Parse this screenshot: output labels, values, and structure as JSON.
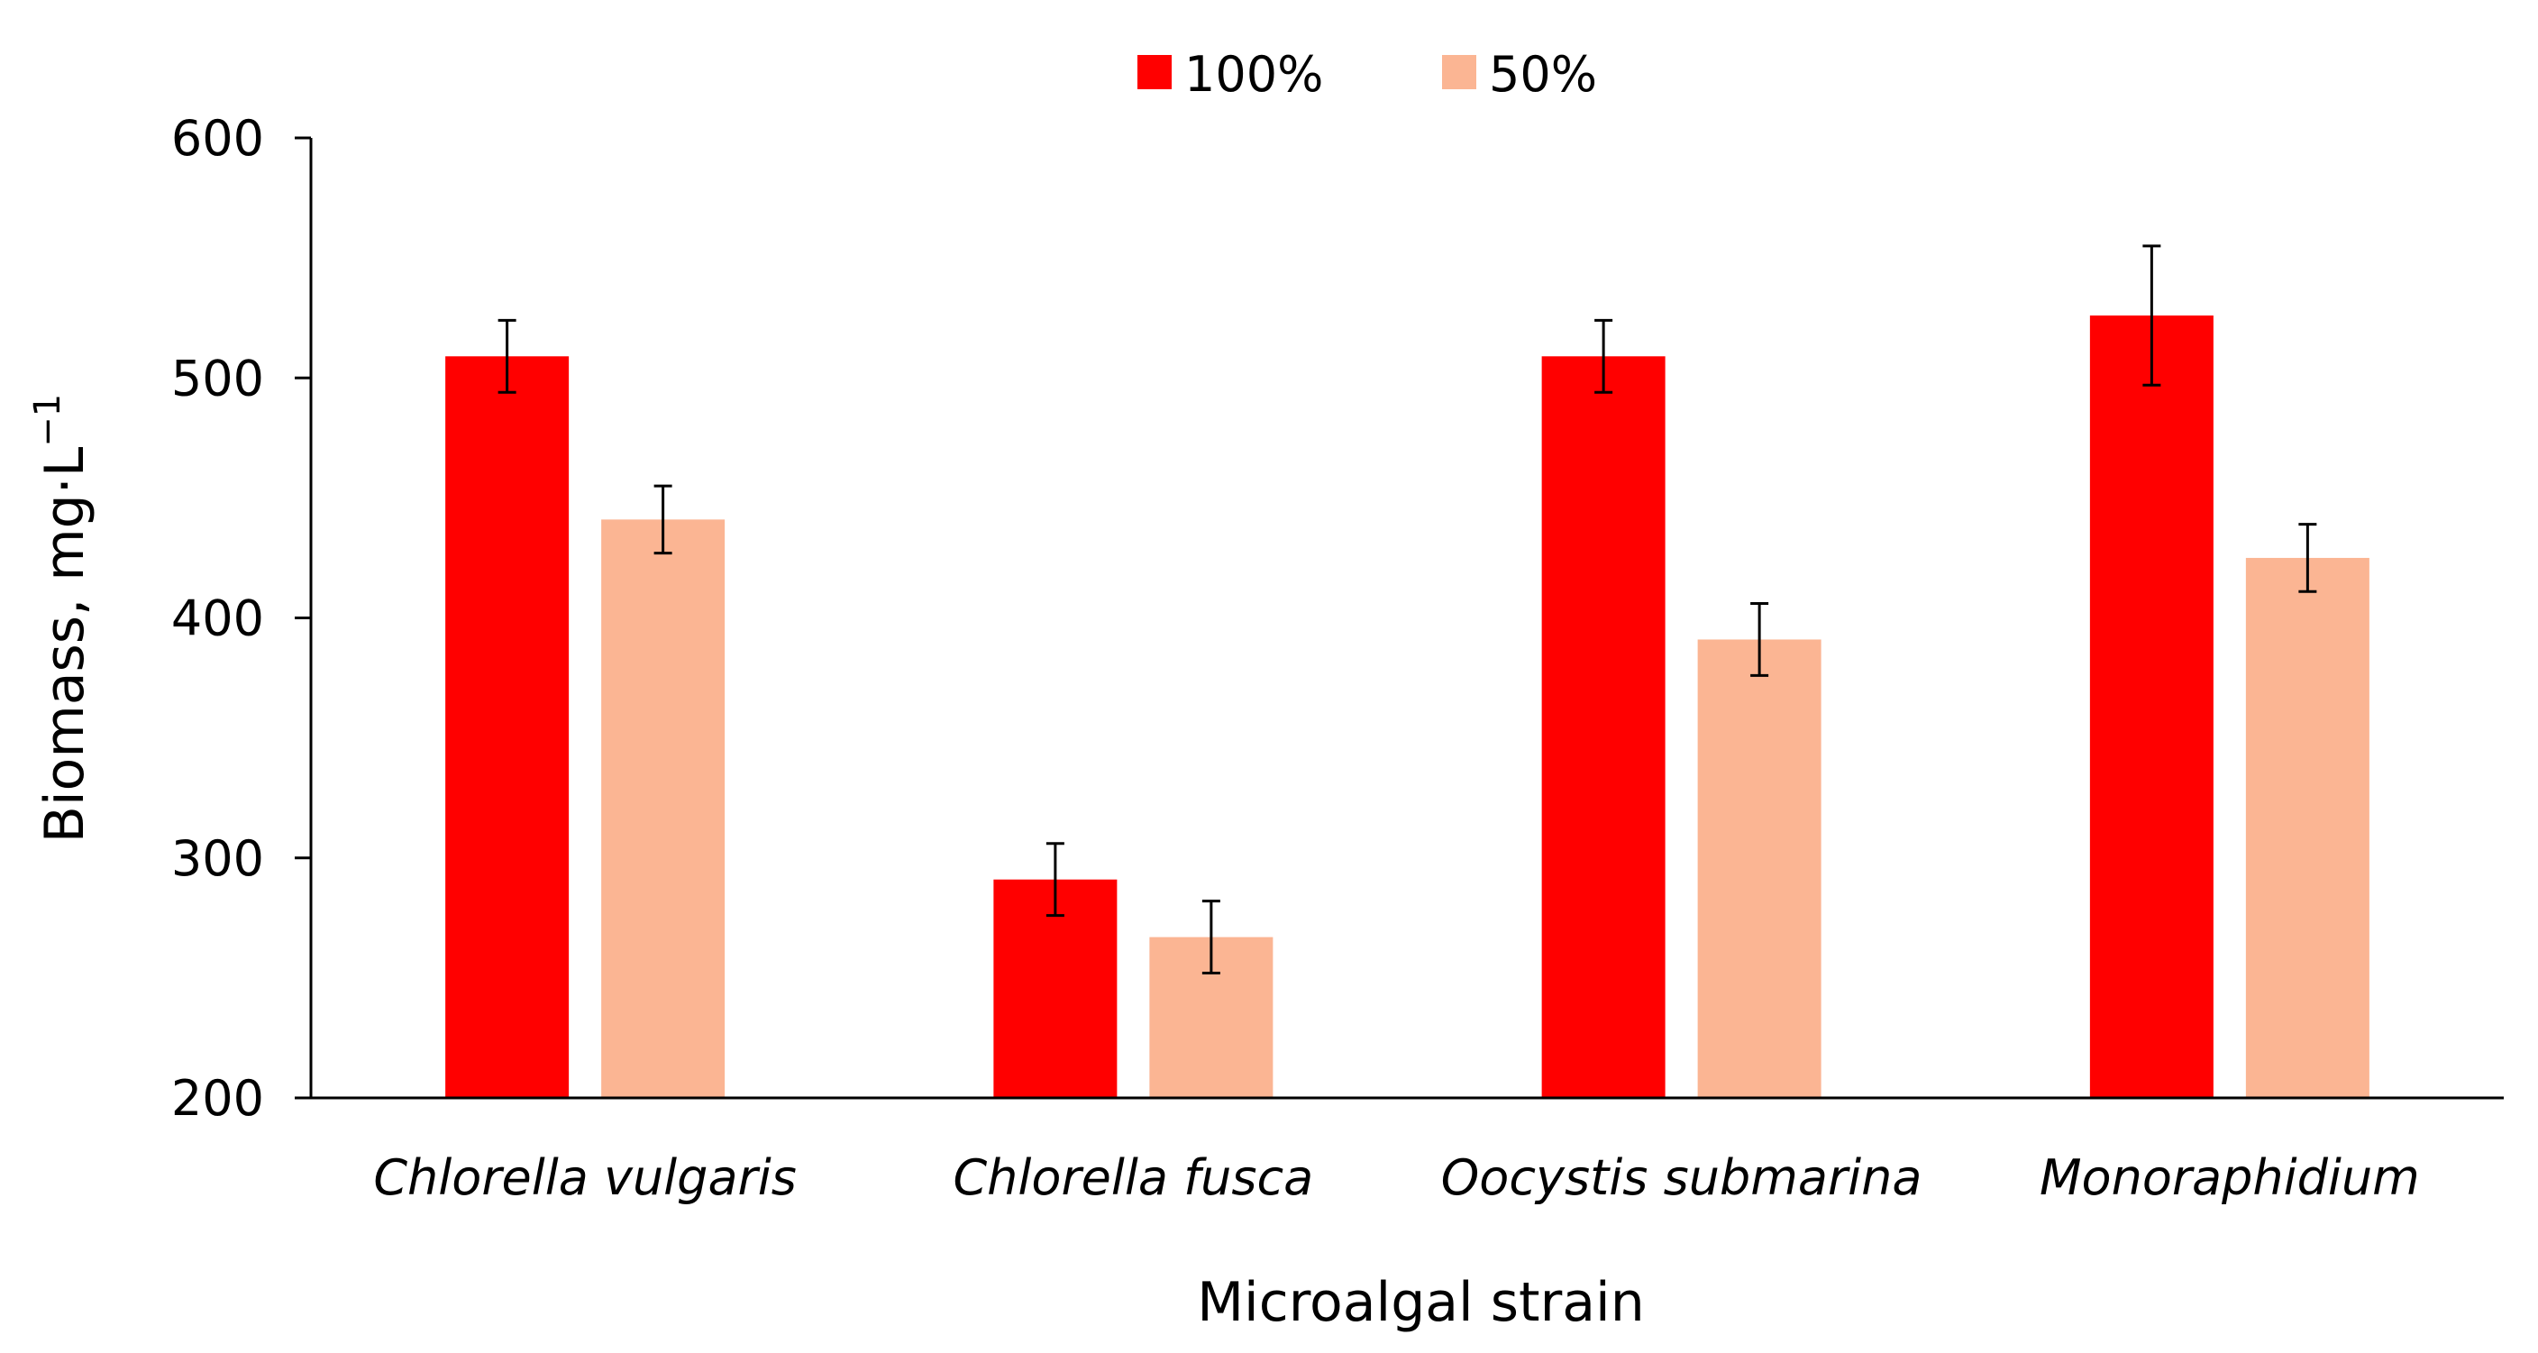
{
  "chart_data": {
    "type": "bar",
    "title": "",
    "xlabel": "Microalgal strain",
    "ylabel_main": "Biomass, mg·L",
    "ylabel_sup": "−1",
    "ylim": [
      200,
      600
    ],
    "yticks": [
      200,
      300,
      400,
      500,
      600
    ],
    "categories": [
      "Chlorella vulgaris",
      "Chlorella fusca",
      "Oocystis submarina",
      "Monoraphidium"
    ],
    "series": [
      {
        "name": "100%",
        "color": "#ff0000",
        "values": [
          509,
          291,
          509,
          526
        ],
        "errors": [
          15,
          15,
          15,
          29
        ]
      },
      {
        "name": "50%",
        "color": "#fbb593",
        "values": [
          441,
          267,
          391,
          425
        ],
        "errors": [
          14,
          15,
          15,
          14
        ]
      }
    ],
    "grid": false,
    "legend_position": "top-center"
  }
}
